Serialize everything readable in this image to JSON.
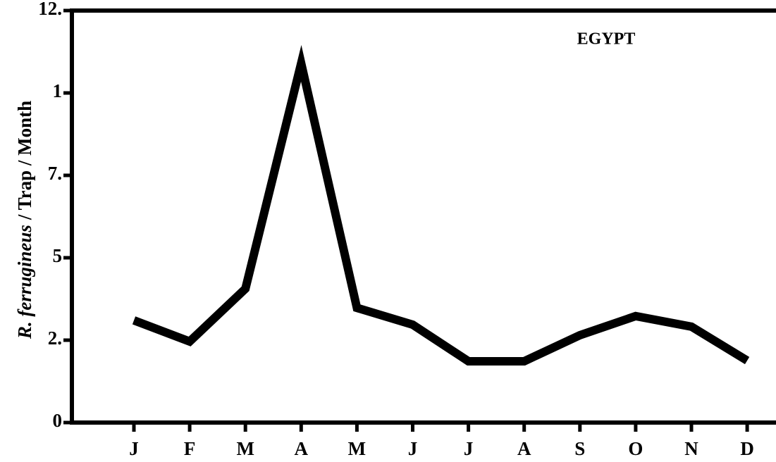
{
  "chart_data": {
    "type": "line",
    "title": "EGYPT",
    "y_label": [
      "R. ferrugineus",
      "/ Trap / Month"
    ],
    "categories": [
      "J",
      "F",
      "M",
      "A",
      "M",
      "J",
      "J",
      "A",
      "S",
      "O",
      "N",
      "D"
    ],
    "values": [
      3.1,
      2.46,
      4.06,
      10.9,
      3.48,
      2.97,
      1.86,
      1.86,
      2.65,
      3.23,
      2.91,
      1.88
    ],
    "color": "#000000",
    "ylim": [
      0,
      12.5
    ],
    "yticks": [
      0,
      {
        "value": 2.5,
        "label": "2."
      },
      5,
      {
        "value": 7.5,
        "label": "7."
      },
      {
        "value": 10,
        "label": "1"
      },
      {
        "value": 12.5,
        "label": "12."
      }
    ],
    "grid": false
  }
}
